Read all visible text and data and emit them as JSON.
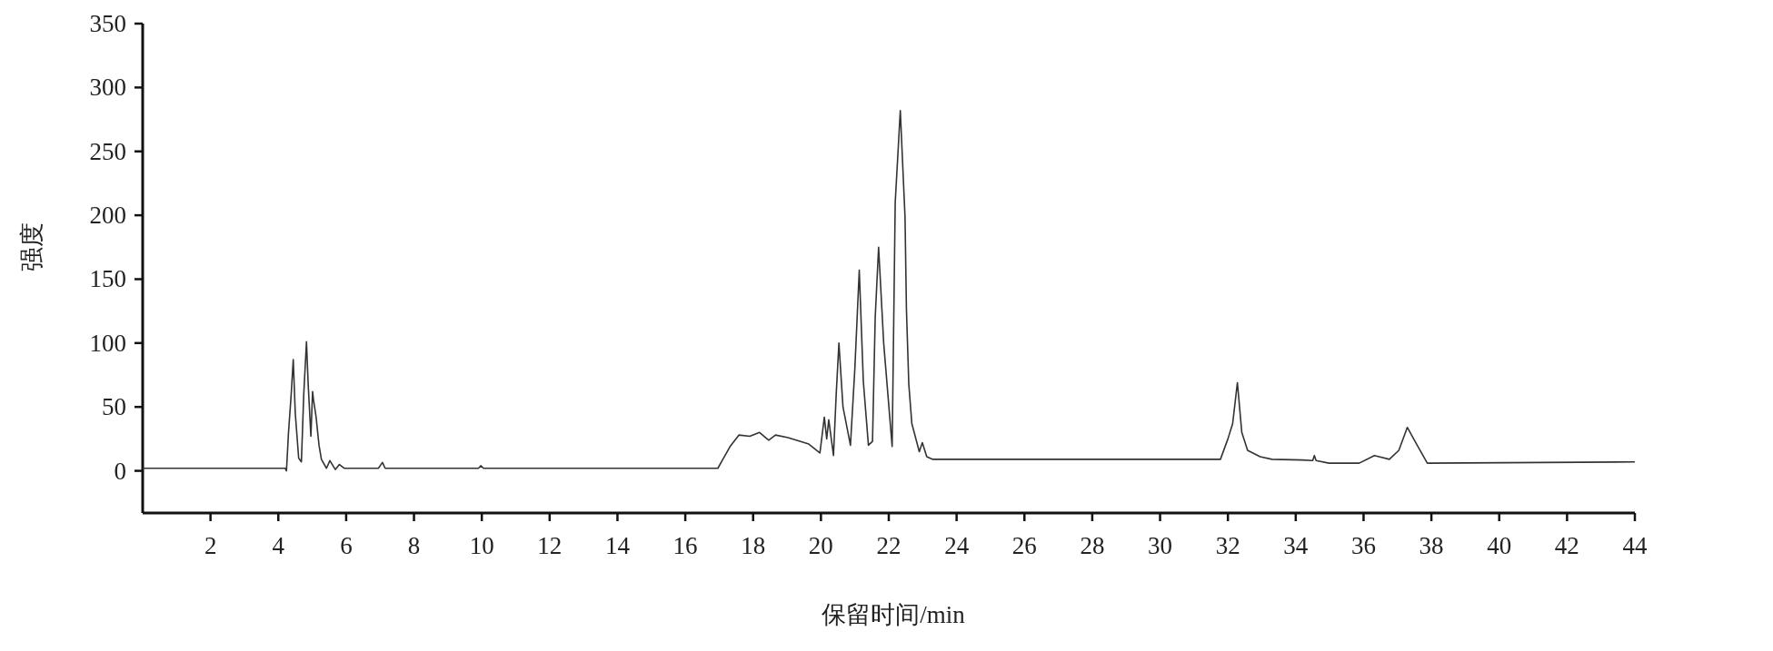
{
  "chart_data": {
    "type": "line",
    "xlabel": "保留时间/min",
    "ylabel": "强度",
    "color": "#333333",
    "x": [
      0,
      4.2,
      4.24,
      4.3,
      4.38,
      4.44,
      4.5,
      4.6,
      4.68,
      4.75,
      4.83,
      4.88,
      4.96,
      5.01,
      5.04,
      5.11,
      5.2,
      5.27,
      5.42,
      5.52,
      5.68,
      5.8,
      5.94,
      6.03,
      6.95,
      7.07,
      7.15,
      9.9,
      9.97,
      10.05,
      16.96,
      17.32,
      17.58,
      17.9,
      18.19,
      18.46,
      18.66,
      19.03,
      19.64,
      19.97,
      20.1,
      20.17,
      20.23,
      20.37,
      20.45,
      20.53,
      20.65,
      20.87,
      21.0,
      21.13,
      21.25,
      21.4,
      21.52,
      21.6,
      21.7,
      21.85,
      22.1,
      22.19,
      22.34,
      22.48,
      22.52,
      22.59,
      22.68,
      22.9,
      22.99,
      23.12,
      23.3,
      31.78,
      32.0,
      32.14,
      32.28,
      32.41,
      32.58,
      32.95,
      33.3,
      34.19,
      34.5,
      34.55,
      34.6,
      34.98,
      35.87,
      36.32,
      36.76,
      37.04,
      37.29,
      37.54,
      37.88,
      44
    ],
    "values": [
      2,
      2,
      0,
      30,
      60,
      87,
      45,
      10,
      7,
      60,
      101,
      68,
      27,
      62,
      55,
      43,
      20,
      9,
      2,
      8,
      1,
      5,
      2,
      2,
      2,
      6.5,
      2,
      2,
      4,
      2,
      2,
      19,
      28,
      27,
      30,
      24,
      28,
      26,
      21,
      14,
      42,
      25,
      40,
      12,
      60,
      100,
      50,
      20,
      80,
      157,
      70,
      20,
      23,
      120,
      175,
      100,
      19,
      210,
      282,
      198,
      127,
      68,
      37,
      15,
      22,
      11,
      9,
      9,
      25,
      37,
      69,
      30,
      16,
      11,
      9,
      8.5,
      8,
      12,
      8,
      6,
      6,
      12,
      9,
      16,
      34,
      22,
      6,
      7
    ],
    "xlim": [
      0,
      44
    ],
    "xticks": [
      2,
      4,
      6,
      8,
      10,
      12,
      14,
      16,
      18,
      20,
      22,
      24,
      26,
      28,
      30,
      32,
      34,
      36,
      38,
      40,
      42,
      44
    ],
    "ylim": [
      -33,
      350
    ],
    "yticks": [
      0,
      50,
      100,
      150,
      200,
      250,
      300,
      350
    ]
  }
}
